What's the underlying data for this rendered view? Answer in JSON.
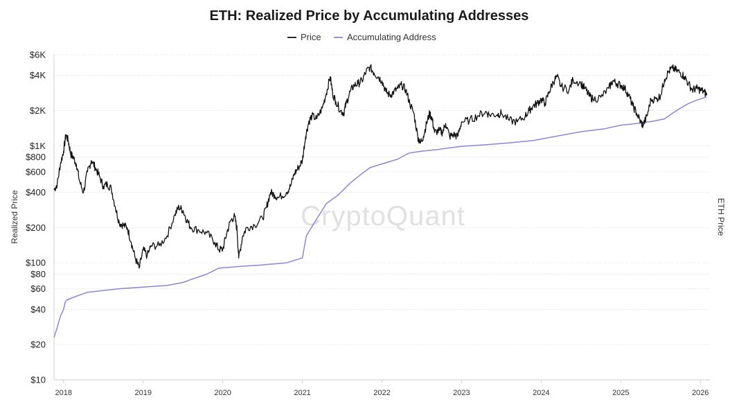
{
  "chart_data": {
    "type": "line",
    "title": "ETH: Realized Price by Accumulating Addresses",
    "ylabel_left": "Realized Price",
    "ylabel_right": "ETH Price",
    "y_scale": "log",
    "ylim": [
      10,
      6000
    ],
    "xlim": [
      2017.88,
      2026.12
    ],
    "watermark": "CryptoQuant",
    "legend": [
      {
        "name": "Price",
        "color": "#111111"
      },
      {
        "name": "Accumulating Address",
        "color": "#8a85d6"
      }
    ],
    "y_ticks": [
      {
        "value": 6000,
        "label": "$6K"
      },
      {
        "value": 4000,
        "label": "$4K"
      },
      {
        "value": 2000,
        "label": "$2K"
      },
      {
        "value": 1000,
        "label": "$1K"
      },
      {
        "value": 800,
        "label": "$800"
      },
      {
        "value": 600,
        "label": "$600"
      },
      {
        "value": 400,
        "label": "$400"
      },
      {
        "value": 200,
        "label": "$200"
      },
      {
        "value": 100,
        "label": "$100"
      },
      {
        "value": 80,
        "label": "$80"
      },
      {
        "value": 60,
        "label": "$60"
      },
      {
        "value": 40,
        "label": "$40"
      },
      {
        "value": 20,
        "label": "$20"
      },
      {
        "value": 10,
        "label": "$10"
      }
    ],
    "x_ticks": [
      {
        "value": 2018,
        "label": "2018"
      },
      {
        "value": 2019,
        "label": "2019"
      },
      {
        "value": 2020,
        "label": "2020"
      },
      {
        "value": 2021,
        "label": "2021"
      },
      {
        "value": 2022,
        "label": "2022"
      },
      {
        "value": 2023,
        "label": "2023"
      },
      {
        "value": 2024,
        "label": "2024"
      },
      {
        "value": 2025,
        "label": "2025"
      },
      {
        "value": 2026,
        "label": "2026"
      }
    ],
    "series": [
      {
        "name": "Price",
        "color": "#111111",
        "points": [
          [
            2017.88,
            420
          ],
          [
            2017.92,
            470
          ],
          [
            2017.96,
            700
          ],
          [
            2018.0,
            900
          ],
          [
            2018.03,
            1250
          ],
          [
            2018.06,
            1100
          ],
          [
            2018.09,
            850
          ],
          [
            2018.12,
            800
          ],
          [
            2018.16,
            700
          ],
          [
            2018.2,
            500
          ],
          [
            2018.25,
            400
          ],
          [
            2018.3,
            600
          ],
          [
            2018.35,
            750
          ],
          [
            2018.4,
            650
          ],
          [
            2018.45,
            550
          ],
          [
            2018.5,
            450
          ],
          [
            2018.55,
            470
          ],
          [
            2018.6,
            430
          ],
          [
            2018.65,
            300
          ],
          [
            2018.7,
            220
          ],
          [
            2018.75,
            210
          ],
          [
            2018.8,
            200
          ],
          [
            2018.85,
            150
          ],
          [
            2018.9,
            110
          ],
          [
            2018.95,
            90
          ],
          [
            2019.0,
            130
          ],
          [
            2019.05,
            115
          ],
          [
            2019.1,
            140
          ],
          [
            2019.2,
            140
          ],
          [
            2019.3,
            170
          ],
          [
            2019.4,
            260
          ],
          [
            2019.45,
            300
          ],
          [
            2019.5,
            280
          ],
          [
            2019.55,
            230
          ],
          [
            2019.6,
            200
          ],
          [
            2019.7,
            190
          ],
          [
            2019.8,
            180
          ],
          [
            2019.9,
            150
          ],
          [
            2019.95,
            130
          ],
          [
            2020.0,
            130
          ],
          [
            2020.05,
            180
          ],
          [
            2020.1,
            230
          ],
          [
            2020.15,
            250
          ],
          [
            2020.18,
            190
          ],
          [
            2020.2,
            110
          ],
          [
            2020.25,
            170
          ],
          [
            2020.3,
            200
          ],
          [
            2020.4,
            210
          ],
          [
            2020.5,
            240
          ],
          [
            2020.55,
            300
          ],
          [
            2020.6,
            400
          ],
          [
            2020.65,
            380
          ],
          [
            2020.7,
            360
          ],
          [
            2020.8,
            400
          ],
          [
            2020.85,
            450
          ],
          [
            2020.9,
            580
          ],
          [
            2020.95,
            650
          ],
          [
            2021.0,
            750
          ],
          [
            2021.04,
            1200
          ],
          [
            2021.08,
            1600
          ],
          [
            2021.12,
            1800
          ],
          [
            2021.18,
            1700
          ],
          [
            2021.25,
            2100
          ],
          [
            2021.3,
            2800
          ],
          [
            2021.35,
            3900
          ],
          [
            2021.38,
            2800
          ],
          [
            2021.42,
            2400
          ],
          [
            2021.48,
            2000
          ],
          [
            2021.52,
            1900
          ],
          [
            2021.55,
            2300
          ],
          [
            2021.6,
            2900
          ],
          [
            2021.65,
            3300
          ],
          [
            2021.7,
            3400
          ],
          [
            2021.75,
            3600
          ],
          [
            2021.8,
            4300
          ],
          [
            2021.85,
            4700
          ],
          [
            2021.9,
            4200
          ],
          [
            2021.95,
            3900
          ],
          [
            2022.0,
            3600
          ],
          [
            2022.05,
            2900
          ],
          [
            2022.1,
            2700
          ],
          [
            2022.15,
            2900
          ],
          [
            2022.2,
            3100
          ],
          [
            2022.25,
            3300
          ],
          [
            2022.3,
            3000
          ],
          [
            2022.35,
            2300
          ],
          [
            2022.4,
            1900
          ],
          [
            2022.45,
            1200
          ],
          [
            2022.48,
            1050
          ],
          [
            2022.52,
            1200
          ],
          [
            2022.56,
            1550
          ],
          [
            2022.6,
            1900
          ],
          [
            2022.63,
            1700
          ],
          [
            2022.66,
            1300
          ],
          [
            2022.72,
            1350
          ],
          [
            2022.76,
            1300
          ],
          [
            2022.8,
            1550
          ],
          [
            2022.85,
            1200
          ],
          [
            2022.9,
            1250
          ],
          [
            2022.95,
            1200
          ],
          [
            2023.0,
            1600
          ],
          [
            2023.1,
            1650
          ],
          [
            2023.2,
            1800
          ],
          [
            2023.3,
            1950
          ],
          [
            2023.35,
            1850
          ],
          [
            2023.45,
            1850
          ],
          [
            2023.5,
            1900
          ],
          [
            2023.6,
            1650
          ],
          [
            2023.7,
            1600
          ],
          [
            2023.8,
            1800
          ],
          [
            2023.85,
            2000
          ],
          [
            2023.9,
            2200
          ],
          [
            2023.95,
            2300
          ],
          [
            2024.0,
            2500
          ],
          [
            2024.05,
            2300
          ],
          [
            2024.1,
            2900
          ],
          [
            2024.15,
            3500
          ],
          [
            2024.2,
            3900
          ],
          [
            2024.25,
            3200
          ],
          [
            2024.35,
            3000
          ],
          [
            2024.4,
            3700
          ],
          [
            2024.5,
            3400
          ],
          [
            2024.55,
            3100
          ],
          [
            2024.6,
            2700
          ],
          [
            2024.65,
            2500
          ],
          [
            2024.75,
            2600
          ],
          [
            2024.85,
            3100
          ],
          [
            2024.9,
            3600
          ],
          [
            2024.95,
            3400
          ],
          [
            2025.0,
            3300
          ],
          [
            2025.05,
            3100
          ],
          [
            2025.1,
            2700
          ],
          [
            2025.15,
            2200
          ],
          [
            2025.2,
            1900
          ],
          [
            2025.25,
            1600
          ],
          [
            2025.28,
            1500
          ],
          [
            2025.33,
            1800
          ],
          [
            2025.38,
            2500
          ],
          [
            2025.45,
            2500
          ],
          [
            2025.5,
            2700
          ],
          [
            2025.55,
            3700
          ],
          [
            2025.6,
            4300
          ],
          [
            2025.65,
            4600
          ],
          [
            2025.7,
            4400
          ],
          [
            2025.75,
            4200
          ],
          [
            2025.8,
            3900
          ],
          [
            2025.85,
            3400
          ],
          [
            2025.9,
            3000
          ],
          [
            2025.95,
            3100
          ],
          [
            2026.0,
            3000
          ],
          [
            2026.05,
            2900
          ],
          [
            2026.08,
            2700
          ]
        ]
      },
      {
        "name": "Accumulating Address",
        "color": "#8a85d6",
        "points": [
          [
            2017.88,
            23
          ],
          [
            2017.92,
            28
          ],
          [
            2017.96,
            35
          ],
          [
            2018.0,
            40
          ],
          [
            2018.02,
            46
          ],
          [
            2018.04,
            48
          ],
          [
            2018.1,
            50
          ],
          [
            2018.2,
            53
          ],
          [
            2018.3,
            56
          ],
          [
            2018.5,
            58
          ],
          [
            2018.7,
            60
          ],
          [
            2019.0,
            62
          ],
          [
            2019.3,
            64
          ],
          [
            2019.5,
            68
          ],
          [
            2019.6,
            72
          ],
          [
            2019.8,
            80
          ],
          [
            2019.95,
            90
          ],
          [
            2020.2,
            93
          ],
          [
            2020.5,
            96
          ],
          [
            2020.8,
            100
          ],
          [
            2021.0,
            110
          ],
          [
            2021.05,
            170
          ],
          [
            2021.15,
            220
          ],
          [
            2021.3,
            320
          ],
          [
            2021.45,
            380
          ],
          [
            2021.6,
            480
          ],
          [
            2021.75,
            580
          ],
          [
            2021.85,
            650
          ],
          [
            2022.0,
            700
          ],
          [
            2022.2,
            770
          ],
          [
            2022.3,
            840
          ],
          [
            2022.35,
            870
          ],
          [
            2022.5,
            900
          ],
          [
            2022.7,
            930
          ],
          [
            2023.0,
            990
          ],
          [
            2023.3,
            1020
          ],
          [
            2023.6,
            1060
          ],
          [
            2023.9,
            1110
          ],
          [
            2024.2,
            1210
          ],
          [
            2024.5,
            1320
          ],
          [
            2024.8,
            1400
          ],
          [
            2025.0,
            1500
          ],
          [
            2025.2,
            1550
          ],
          [
            2025.4,
            1620
          ],
          [
            2025.55,
            1700
          ],
          [
            2025.65,
            1900
          ],
          [
            2025.75,
            2100
          ],
          [
            2025.85,
            2300
          ],
          [
            2025.95,
            2450
          ],
          [
            2026.05,
            2580
          ],
          [
            2026.08,
            2620
          ]
        ]
      }
    ]
  }
}
